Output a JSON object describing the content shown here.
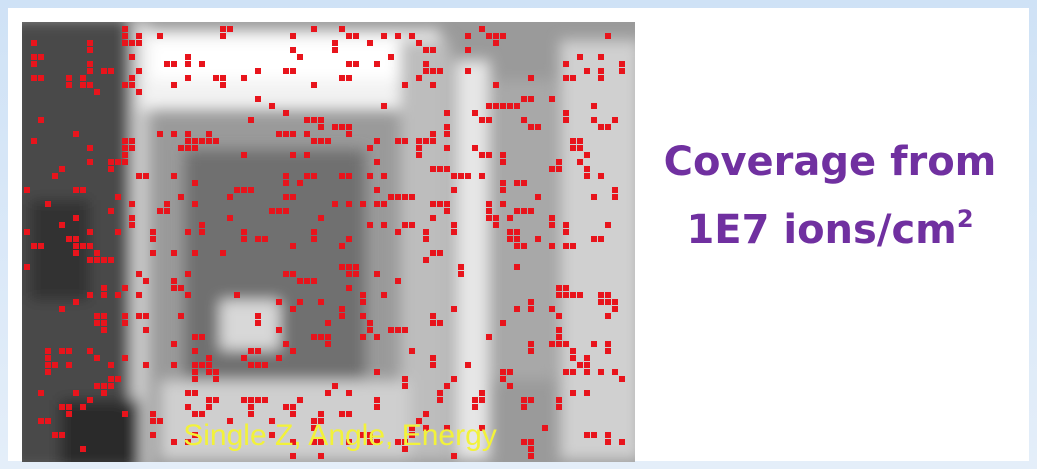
{
  "image": {
    "caption": "Single Z, Angle, Energy"
  },
  "heading": {
    "line1": "Coverage from",
    "line2": "1E7 ions/cm",
    "superscript": "2"
  }
}
